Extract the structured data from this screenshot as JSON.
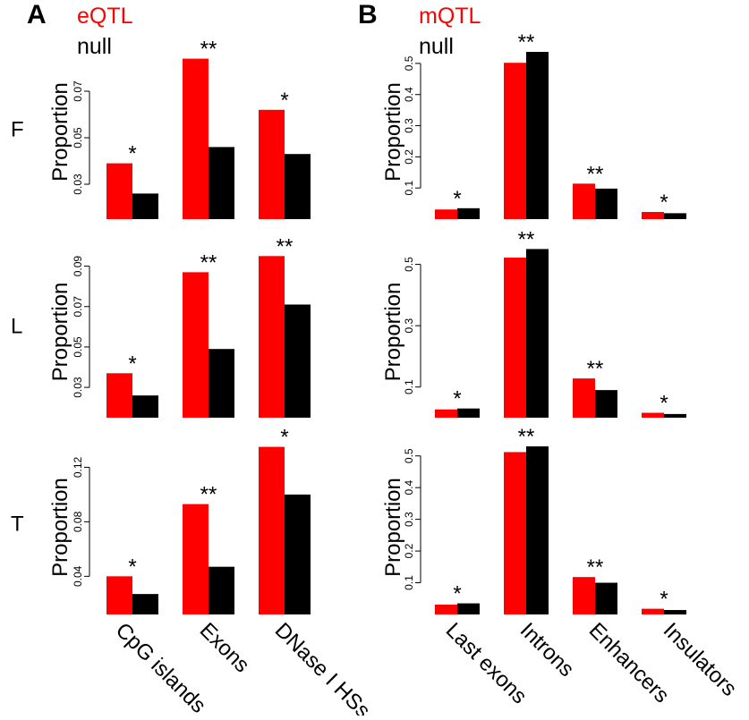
{
  "panels": {
    "A": {
      "letter": "A",
      "legend": {
        "series_label": "eQTL",
        "null_label": "null"
      }
    },
    "B": {
      "letter": "B",
      "legend": {
        "series_label": "mQTL",
        "null_label": "null"
      }
    }
  },
  "rows": [
    "F",
    "L",
    "T"
  ],
  "colors": {
    "qtl": "#ff0000",
    "null": "#000000"
  },
  "chart_data": [
    {
      "type": "bar",
      "panel": "A",
      "row": "F",
      "ylabel": "Proportion",
      "categories": [
        "CpG islands",
        "Exons",
        "DNase I HSs"
      ],
      "series": [
        {
          "name": "eQTL",
          "values": [
            0.039,
            0.084,
            0.062
          ]
        },
        {
          "name": "null",
          "values": [
            0.026,
            0.046,
            0.043
          ]
        }
      ],
      "significance": [
        "*",
        "**",
        "*"
      ],
      "ylim": [
        0.015,
        0.09
      ],
      "yticks": [
        0.03,
        0.05,
        0.07
      ],
      "ytick_labels": [
        "0.03",
        "0.05",
        "0.07"
      ]
    },
    {
      "type": "bar",
      "panel": "A",
      "row": "L",
      "ylabel": "Proportion",
      "categories": [
        "CpG islands",
        "Exons",
        "DNase I HSs"
      ],
      "series": [
        {
          "name": "eQTL",
          "values": [
            0.037,
            0.087,
            0.095
          ]
        },
        {
          "name": "null",
          "values": [
            0.026,
            0.049,
            0.071
          ]
        }
      ],
      "significance": [
        "*",
        "**",
        "**"
      ],
      "ylim": [
        0.015,
        0.1
      ],
      "yticks": [
        0.03,
        0.05,
        0.07,
        0.09
      ],
      "ytick_labels": [
        "0.03",
        "0.05",
        "0.07",
        "0.09"
      ]
    },
    {
      "type": "bar",
      "panel": "A",
      "row": "T",
      "ylabel": "Proportion",
      "categories": [
        "CpG islands",
        "Exons",
        "DNase I HSs"
      ],
      "series": [
        {
          "name": "eQTL",
          "values": [
            0.04,
            0.093,
            0.135
          ]
        },
        {
          "name": "null",
          "values": [
            0.027,
            0.047,
            0.1
          ]
        }
      ],
      "significance": [
        "*",
        "**",
        "*"
      ],
      "ylim": [
        0.012,
        0.14
      ],
      "yticks": [
        0.04,
        0.08,
        0.12
      ],
      "ytick_labels": [
        "0.04",
        "0.08",
        "0.12"
      ]
    },
    {
      "type": "bar",
      "panel": "B",
      "row": "F",
      "ylabel": "Proportion",
      "categories": [
        "Last exons",
        "Introns",
        "Enhancers",
        "Insulators"
      ],
      "series": [
        {
          "name": "mQTL",
          "values": [
            0.031,
            0.502,
            0.114,
            0.023
          ]
        },
        {
          "name": "null",
          "values": [
            0.035,
            0.537,
            0.098,
            0.019
          ]
        }
      ],
      "significance": [
        "*",
        "**",
        "**",
        "*"
      ],
      "ylim": [
        0.0,
        0.56
      ],
      "yticks": [
        0.1,
        0.2,
        0.3,
        0.4,
        0.5
      ],
      "ytick_labels": [
        "0.1",
        "0.2",
        "0.3",
        "0.4",
        "0.5"
      ]
    },
    {
      "type": "bar",
      "panel": "B",
      "row": "L",
      "ylabel": "Proportion",
      "categories": [
        "Last exons",
        "Introns",
        "Enhancers",
        "Insulators"
      ],
      "series": [
        {
          "name": "mQTL",
          "values": [
            0.027,
            0.522,
            0.128,
            0.016
          ]
        },
        {
          "name": "null",
          "values": [
            0.03,
            0.55,
            0.09,
            0.012
          ]
        }
      ],
      "significance": [
        "*",
        "**",
        "**",
        "*"
      ],
      "ylim": [
        0.0,
        0.56
      ],
      "yticks": [
        0.1,
        0.3,
        0.5
      ],
      "ytick_labels": [
        "0.1",
        "0.3",
        "0.5"
      ]
    },
    {
      "type": "bar",
      "panel": "B",
      "row": "T",
      "ylabel": "Proportion",
      "categories": [
        "Last exons",
        "Introns",
        "Enhancers",
        "Insulators"
      ],
      "series": [
        {
          "name": "mQTL",
          "values": [
            0.031,
            0.512,
            0.118,
            0.018
          ]
        },
        {
          "name": "null",
          "values": [
            0.035,
            0.53,
            0.1,
            0.014
          ]
        }
      ],
      "significance": [
        "*",
        "**",
        "**",
        "*"
      ],
      "ylim": [
        0.0,
        0.55
      ],
      "yticks": [
        0.1,
        0.2,
        0.3,
        0.4,
        0.5
      ],
      "ytick_labels": [
        "0.1",
        "0.2",
        "0.3",
        "0.4",
        "0.5"
      ]
    }
  ]
}
